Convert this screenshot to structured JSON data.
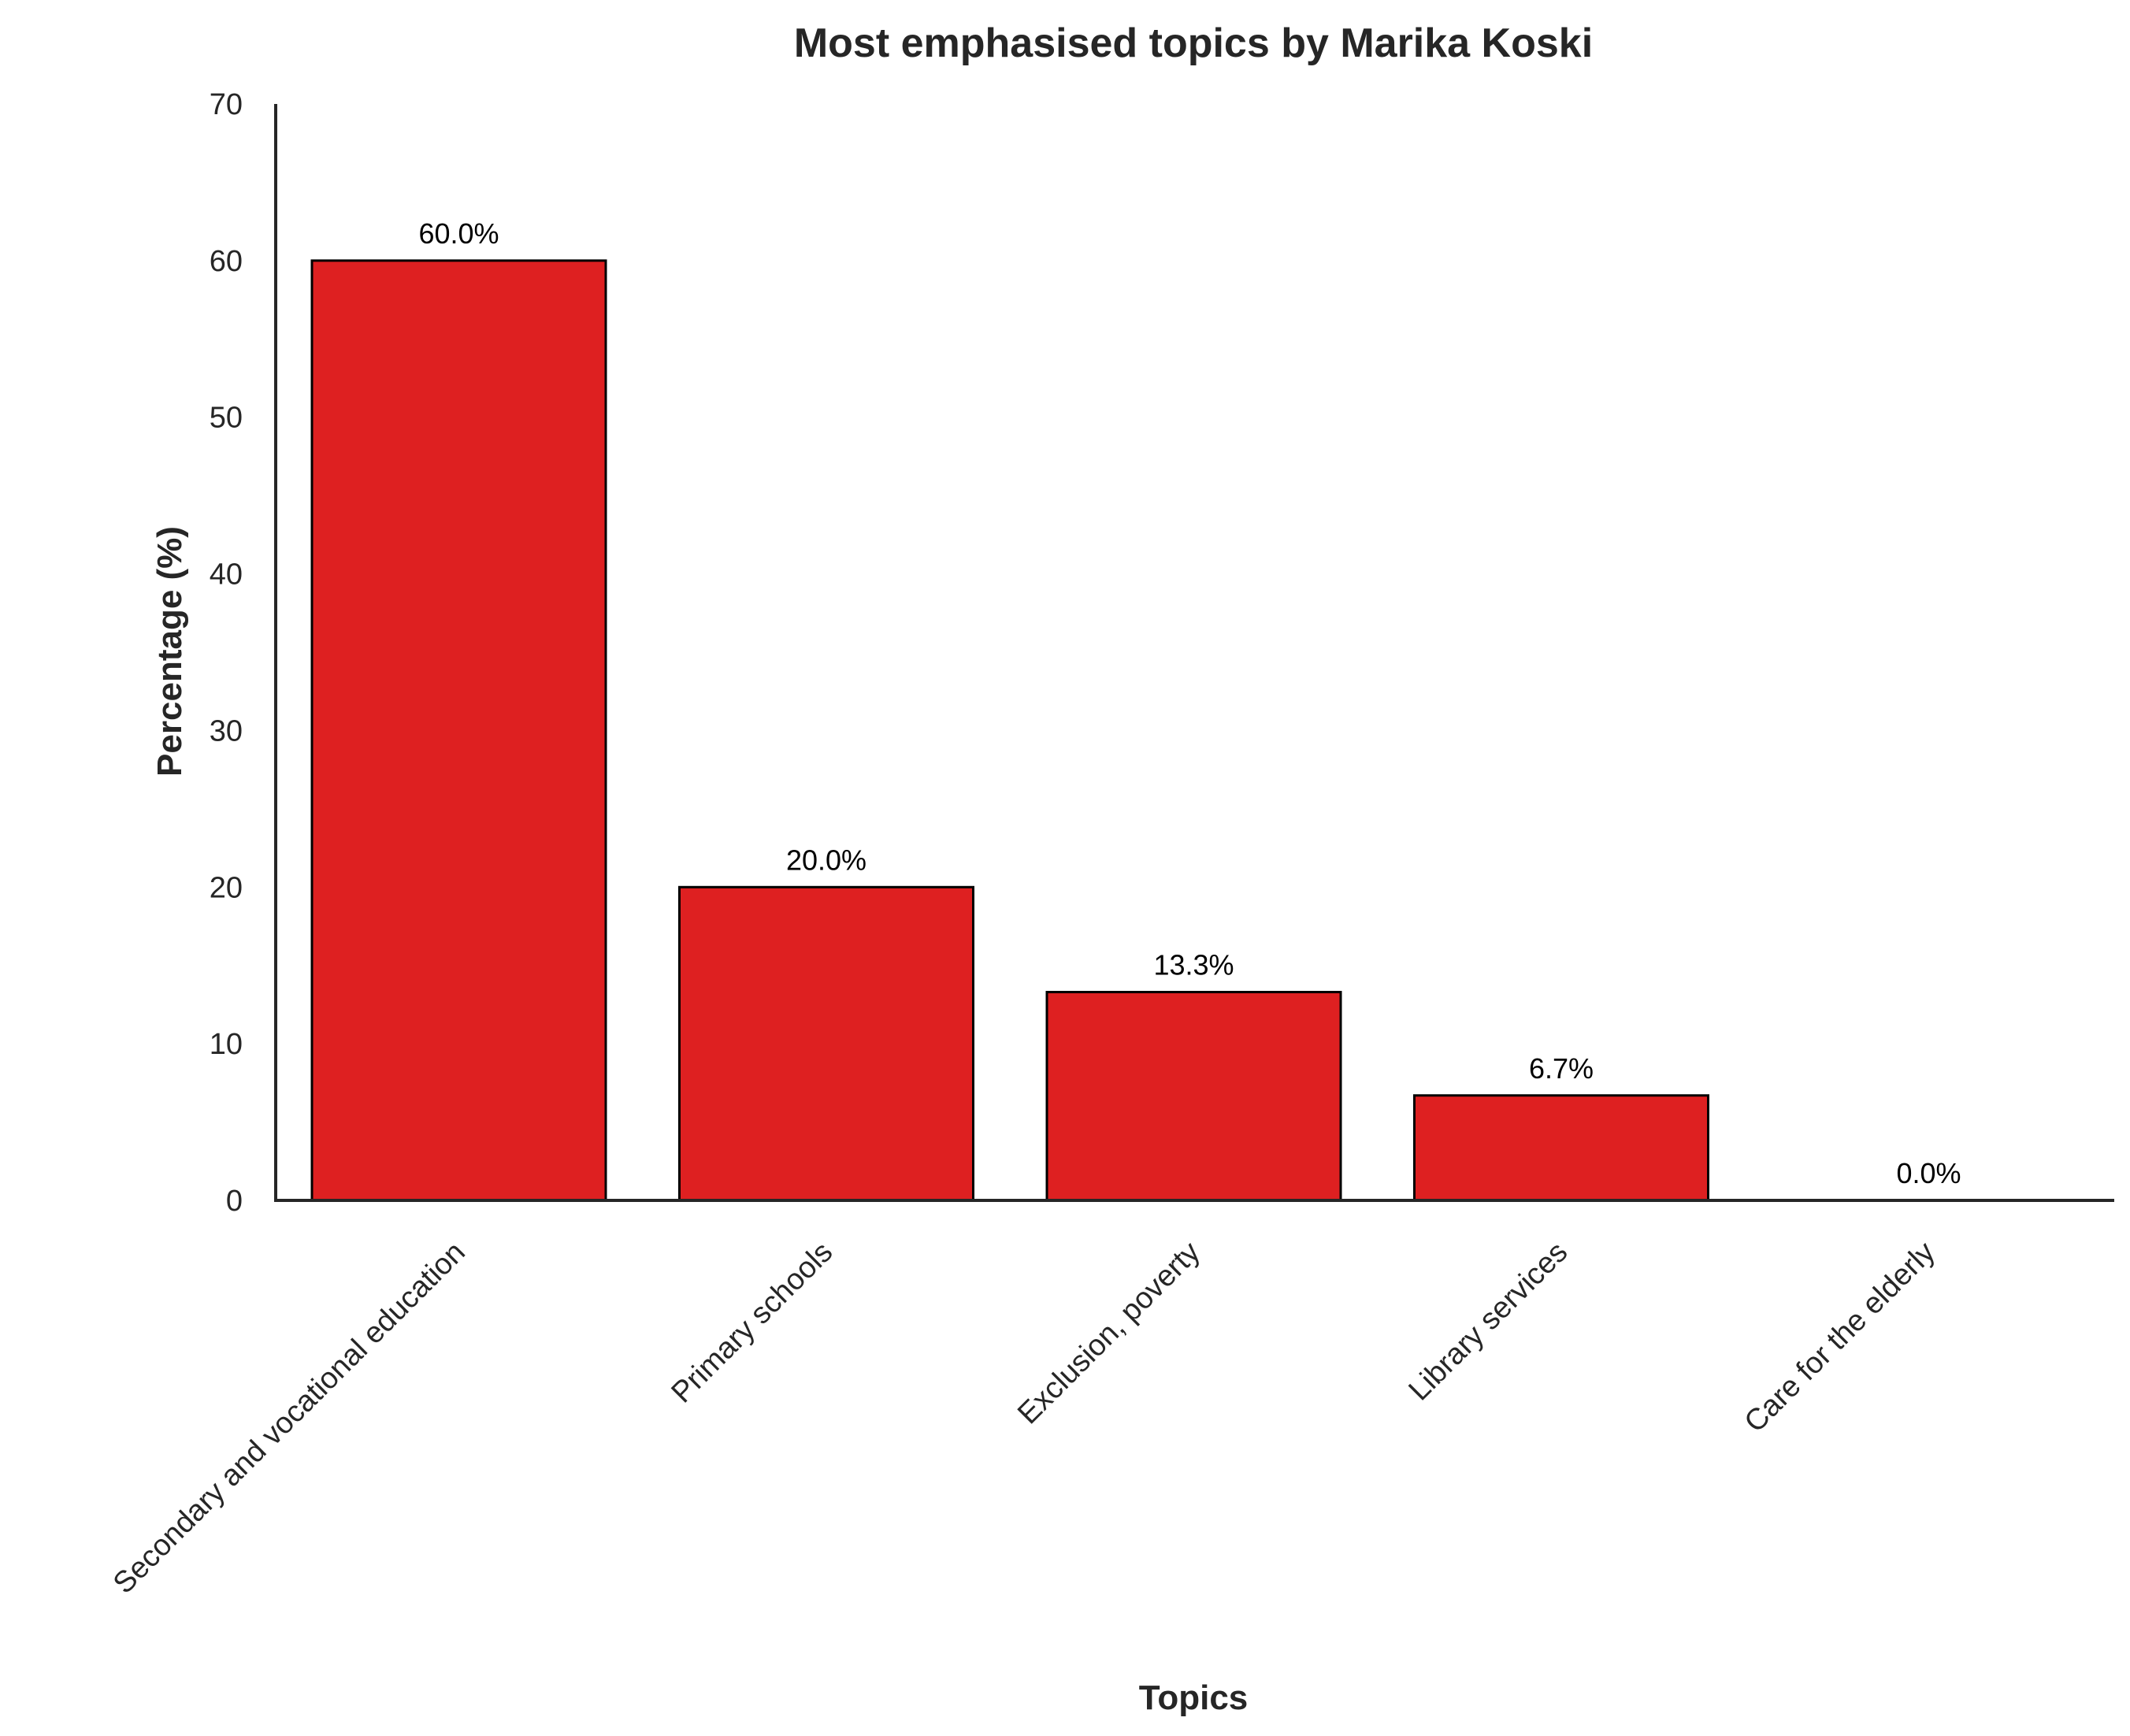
{
  "chart_data": {
    "type": "bar",
    "title": "Most emphasised topics by Marika Koski",
    "xlabel": "Topics",
    "ylabel": "Percentage (%)",
    "categories": [
      "Secondary and vocational education",
      "Primary schools",
      "Exclusion, poverty",
      "Library services",
      "Care for the elderly"
    ],
    "values": [
      60.0,
      20.0,
      13.3,
      6.7,
      0.0
    ],
    "value_labels": [
      "60.0%",
      "20.0%",
      "13.3%",
      "6.7%",
      "0.0%"
    ],
    "ylim": [
      0,
      70
    ],
    "yticks": [
      0,
      10,
      20,
      30,
      40,
      50,
      60,
      70
    ],
    "grid": false,
    "legend": "none",
    "colors": {
      "bar_fill": "#de2021",
      "bar_edge": "#000000",
      "axis": "#262626",
      "text": "#262626"
    }
  }
}
